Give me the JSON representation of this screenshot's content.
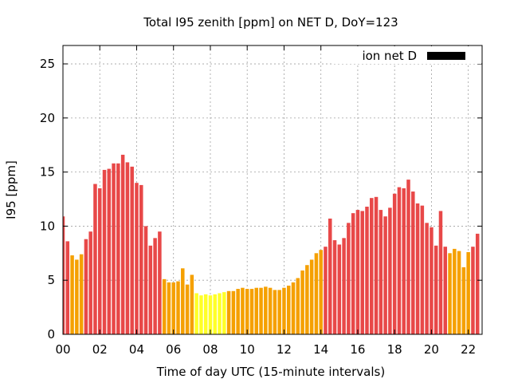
{
  "chart_data": {
    "type": "bar",
    "title": "Total I95 zenith [ppm] on NET D, DoY=123",
    "xlabel": "Time of day UTC (15-minute intervals)",
    "ylabel": "I95 [ppm]",
    "ylim": [
      0,
      26.7
    ],
    "xlim": [
      0,
      22.75
    ],
    "yticks": [
      0,
      5,
      10,
      15,
      20,
      25
    ],
    "xticks": [
      "00",
      "02",
      "04",
      "06",
      "08",
      "10",
      "12",
      "14",
      "16",
      "18",
      "20",
      "22"
    ],
    "grid": true,
    "legend": {
      "position": "top-right",
      "entries": [
        {
          "name": "ion net D",
          "color": "#000000"
        }
      ]
    },
    "interval_hours": 0.25,
    "color_scale": {
      "high": "#e84848",
      "mid": "#f5a000",
      "low": "#ffff28"
    },
    "values": [
      10.9,
      8.6,
      7.3,
      6.9,
      7.4,
      8.8,
      9.5,
      13.9,
      13.5,
      15.2,
      15.3,
      15.8,
      15.8,
      16.6,
      15.9,
      15.5,
      14.0,
      13.8,
      10.0,
      8.2,
      8.9,
      9.5,
      5.1,
      4.8,
      4.8,
      4.9,
      6.1,
      4.6,
      5.5,
      3.8,
      3.6,
      3.7,
      3.6,
      3.7,
      3.8,
      3.9,
      4.0,
      4.0,
      4.2,
      4.3,
      4.2,
      4.2,
      4.3,
      4.3,
      4.4,
      4.3,
      4.1,
      4.1,
      4.3,
      4.5,
      4.8,
      5.2,
      5.9,
      6.4,
      6.9,
      7.5,
      7.8,
      8.1,
      10.7,
      8.7,
      8.3,
      8.9,
      10.3,
      11.2,
      11.5,
      11.4,
      11.8,
      12.6,
      12.7,
      11.5,
      10.9,
      11.7,
      13.0,
      13.6,
      13.5,
      14.3,
      13.2,
      12.1,
      11.9,
      10.3,
      9.9,
      8.2,
      11.4,
      8.1,
      7.5,
      7.9,
      7.7,
      6.2,
      7.6,
      8.1,
      9.3
    ],
    "colors": [
      "#e84848",
      "#e84848",
      "#f5a000",
      "#f5a000",
      "#f5a000",
      "#e84848",
      "#e84848",
      "#e84848",
      "#e84848",
      "#e84848",
      "#e84848",
      "#e84848",
      "#e84848",
      "#e84848",
      "#e84848",
      "#e84848",
      "#e84848",
      "#e84848",
      "#e84848",
      "#e84848",
      "#e84848",
      "#e84848",
      "#f5a000",
      "#f5a000",
      "#f5a000",
      "#f5a000",
      "#f5a000",
      "#f5a000",
      "#f5a000",
      "#ffff28",
      "#ffff28",
      "#ffff28",
      "#ffff28",
      "#ffff28",
      "#ffff28",
      "#ffff28",
      "#f5a000",
      "#f5a000",
      "#f5a000",
      "#f5a000",
      "#f5a000",
      "#f5a000",
      "#f5a000",
      "#f5a000",
      "#f5a000",
      "#f5a000",
      "#f5a000",
      "#f5a000",
      "#f5a000",
      "#f5a000",
      "#f5a000",
      "#f5a000",
      "#f5a000",
      "#f5a000",
      "#f5a000",
      "#f5a000",
      "#f5a000",
      "#e84848",
      "#e84848",
      "#e84848",
      "#e84848",
      "#e84848",
      "#e84848",
      "#e84848",
      "#e84848",
      "#e84848",
      "#e84848",
      "#e84848",
      "#e84848",
      "#e84848",
      "#e84848",
      "#e84848",
      "#e84848",
      "#e84848",
      "#e84848",
      "#e84848",
      "#e84848",
      "#e84848",
      "#e84848",
      "#e84848",
      "#e84848",
      "#e84848",
      "#e84848",
      "#e84848",
      "#f5a000",
      "#f5a000",
      "#f5a000",
      "#f5a000",
      "#f5a000",
      "#e84848",
      "#e84848"
    ]
  }
}
